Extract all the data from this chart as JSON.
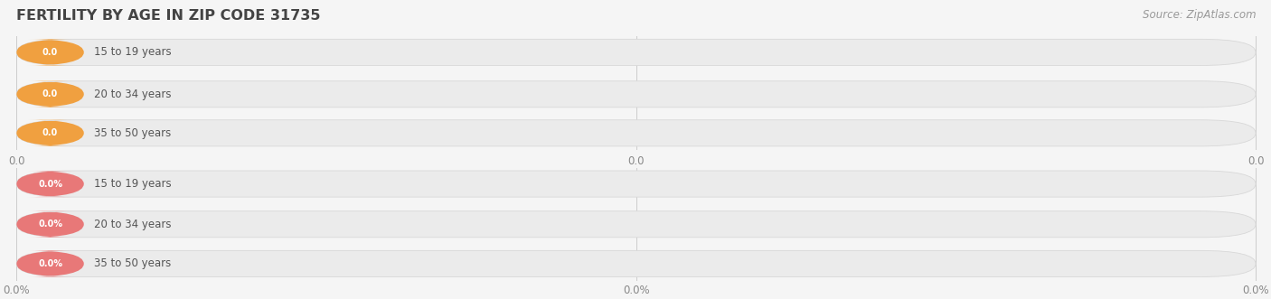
{
  "title": "FERTILITY BY AGE IN ZIP CODE 31735",
  "source": "Source: ZipAtlas.com",
  "top_categories": [
    "15 to 19 years",
    "20 to 34 years",
    "35 to 50 years"
  ],
  "bottom_categories": [
    "15 to 19 years",
    "20 to 34 years",
    "35 to 50 years"
  ],
  "top_value_labels": [
    "0.0",
    "0.0",
    "0.0"
  ],
  "bottom_value_labels": [
    "0.0%",
    "0.0%",
    "0.0%"
  ],
  "top_pill_color": "#f0a040",
  "bottom_pill_color": "#e87878",
  "top_bar_bg": "#ebebeb",
  "bottom_bar_bg": "#ebebeb",
  "bar_border_color": "#d8d8d8",
  "label_text_color": "#555555",
  "value_text_color": "#ffffff",
  "title_color": "#444444",
  "source_color": "#999999",
  "tick_label_color": "#888888",
  "bg_color": "#f5f5f5",
  "gridline_color": "#cccccc",
  "top_tick_labels": [
    "0.0",
    "0.0",
    "0.0"
  ],
  "bottom_tick_labels": [
    "0.0%",
    "0.0%",
    "0.0%"
  ],
  "figsize": [
    14.06,
    3.31
  ],
  "dpi": 100
}
